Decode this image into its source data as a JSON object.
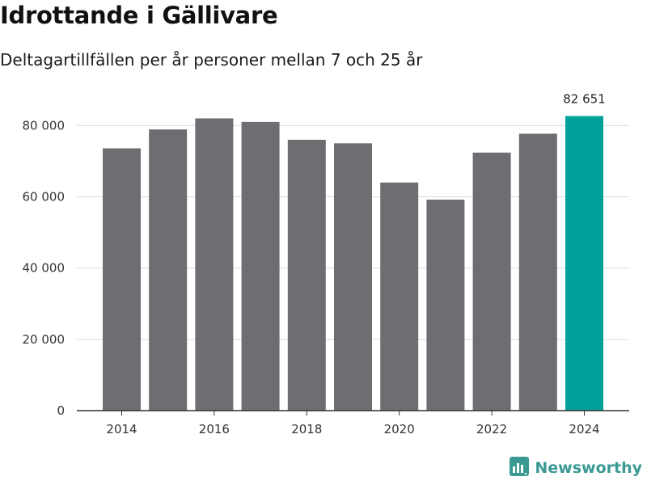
{
  "colors": {
    "bar": "#6e6d72",
    "highlight": "#00a19a",
    "grid": "#d9d9d9",
    "axis": "#333333",
    "brand": "#3a9a93"
  },
  "brand": {
    "name": "Newsworthy",
    "icon": "newsworthy-logo-icon"
  },
  "chart_data": {
    "type": "bar",
    "title": "Idrottande i Gällivare",
    "subtitle": "Deltagartillfällen per år personer mellan 7 och 25 år",
    "xlabel": "",
    "ylabel": "",
    "categories": [
      "2014",
      "2015",
      "2016",
      "2017",
      "2018",
      "2019",
      "2020",
      "2021",
      "2022",
      "2023",
      "2024"
    ],
    "values": [
      73600,
      78900,
      82000,
      81000,
      76000,
      75000,
      64000,
      59200,
      72400,
      77700,
      82651
    ],
    "highlight_index": 10,
    "data_labels": [
      {
        "index": 10,
        "text": "82 651"
      }
    ],
    "ylim": [
      0,
      88000
    ],
    "yticks": [
      0,
      20000,
      40000,
      60000,
      80000
    ],
    "ytick_labels": [
      "0",
      "20 000",
      "40 000",
      "60 000",
      "80 000"
    ],
    "xtick_labels": [
      "2014",
      "",
      "2016",
      "",
      "2018",
      "",
      "2020",
      "",
      "2022",
      "",
      "2024"
    ],
    "grid": true,
    "legend": "none"
  }
}
